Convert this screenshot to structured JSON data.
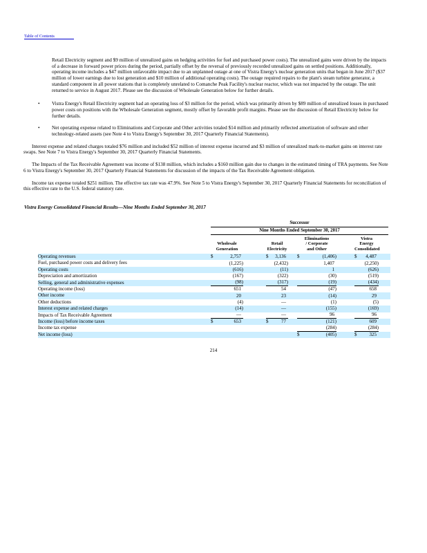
{
  "header": {
    "toc_link": "Table of Contents"
  },
  "body": {
    "bullet_char": "•",
    "p1": "Retail Electricity segment and $9 million of unrealized gains on hedging activities for fuel and purchased power costs). The unrealized gains were driven by the impacts of a decrease in forward power prices during the period, partially offset by the reversal of previously recorded unrealized gains on settled positions. Additionally, operating income includes a $47 million unfavorable impact due to an unplanned outage at one of Vistra Energy's nuclear generation units that began in June 2017 ($37 million of lower earnings due to lost generation and $10 million of additional operating costs). The outage required repairs to the plant's steam turbine generator, a standard component in all power stations that is completely unrelated to Comanche Peak Facility's nuclear reactor, which was not impacted by the outage. The unit returned to service in August 2017. Please see the discussion of Wholesale Generation below for further details.",
    "bullets": [
      "Vistra Energy's Retail Electricity segment had an operating loss of $3 million for the period, which was primarily driven by $89 million of unrealized losses in purchased power costs on positions with the Wholesale Generation segment, mostly offset by favorable profit margins. Please see the discussion of Retail Electricity below for further details.",
      "Net operating expense related to Eliminations and Corporate and Other activities totaled $14 million and primarily reflected amortization of software and other technology-related assets (see Note 4 to Vistra Energy's September 30, 2017 Quarterly Financial Statements)."
    ],
    "p2": "Interest expense and related charges totaled $76 million and included $52 million of interest expense incurred and $3 million of unrealized mark-to-market gains on interest rate swaps. See Note 7 to Vistra Energy's September 30, 2017 Quarterly Financial Statements.",
    "p3": "The Impacts of the Tax Receivable Agreement was income of $138 million, which includes a $160 million gain due to changes in the estimated timing of TRA payments. See Note 6 to Vistra Energy's September 30, 2017 Quarterly Financial Statements for discussion of the impacts of the Tax Receivable Agreement obligation.",
    "p4": "Income tax expense totaled $251 million. The effective tax rate was 47.9%. See Note 5 to Vistra Energy's September 30, 2017 Quarterly Financial Statements for reconciliation of this effective rate to the U.S. federal statutory rate.",
    "section_heading": "Vistra Energy Consolidated Financial Results—Nine Months Ended September 30, 2017"
  },
  "table": {
    "group_header": "Successor",
    "period_header": "Nine Months Ended September 30, 2017",
    "columns": [
      "Wholesale\nGeneration",
      "Retail\nElectricity",
      "Eliminations\n/ Corporate\nand Other",
      "Vistra\nEnergy\nConsolidated"
    ],
    "highlight_color": "#CCEEFF",
    "rows": [
      {
        "label": "Operating revenues",
        "shade": true,
        "cells": [
          {
            "d": "$",
            "v": "2,757"
          },
          {
            "d": "$",
            "v": "3,136"
          },
          {
            "d": "$",
            "v": "(1,406)"
          },
          {
            "d": "$",
            "v": "4,487"
          }
        ]
      },
      {
        "label": "Fuel, purchased power costs and delivery fees",
        "shade": false,
        "cells": [
          {
            "v": "(1,225)"
          },
          {
            "v": "(2,432)"
          },
          {
            "v": "1,407"
          },
          {
            "v": "(2,250)"
          }
        ]
      },
      {
        "label": "Operating costs",
        "shade": true,
        "cells": [
          {
            "v": "(616)"
          },
          {
            "v": "(11)"
          },
          {
            "v": "1"
          },
          {
            "v": "(626)"
          }
        ]
      },
      {
        "label": "Depreciation and amortization",
        "shade": false,
        "cells": [
          {
            "v": "(167)"
          },
          {
            "v": "(322)"
          },
          {
            "v": "(30)"
          },
          {
            "v": "(519)"
          }
        ]
      },
      {
        "label": "Selling, general and administrative expenses",
        "shade": true,
        "cells": [
          {
            "v": "(98)",
            "u": true
          },
          {
            "v": "(317)",
            "u": true
          },
          {
            "v": "(19)",
            "u": true
          },
          {
            "v": "(434)",
            "u": true
          }
        ]
      },
      {
        "label": "Operating income (loss)",
        "shade": false,
        "cells": [
          {
            "v": "651"
          },
          {
            "v": "54"
          },
          {
            "v": "(47)"
          },
          {
            "v": "658"
          }
        ]
      },
      {
        "label": "Other income",
        "shade": true,
        "cells": [
          {
            "v": "20"
          },
          {
            "v": "23"
          },
          {
            "v": "(14)"
          },
          {
            "v": "29"
          }
        ]
      },
      {
        "label": "Other deductions",
        "shade": false,
        "cells": [
          {
            "v": "(4)"
          },
          {
            "v": "—"
          },
          {
            "v": "(1)"
          },
          {
            "v": "(5)"
          }
        ]
      },
      {
        "label": "Interest expense and related charges",
        "shade": true,
        "cells": [
          {
            "v": "(14)"
          },
          {
            "v": "—"
          },
          {
            "v": "(155)"
          },
          {
            "v": "(169)"
          }
        ]
      },
      {
        "label": "Impacts of Tax Receivable Agreement",
        "shade": false,
        "cells": [
          {
            "v": "—",
            "u": true
          },
          {
            "v": "—",
            "u": true
          },
          {
            "v": "96",
            "u": true
          },
          {
            "v": "96",
            "u": true
          }
        ]
      },
      {
        "label": "Income (loss) before income taxes",
        "shade": true,
        "cells": [
          {
            "d": "$",
            "v": "653"
          },
          {
            "d": "$",
            "v": "77"
          },
          {
            "v": "(121)"
          },
          {
            "v": "609"
          }
        ]
      },
      {
        "label": "Income tax expense",
        "shade": false,
        "cells": [
          {
            "v": ""
          },
          {
            "v": ""
          },
          {
            "v": "(284)",
            "u": true
          },
          {
            "v": "(284)",
            "u": true
          }
        ]
      },
      {
        "label": "Net income (loss)",
        "shade": true,
        "cells": [
          {
            "v": ""
          },
          {
            "v": ""
          },
          {
            "d": "$",
            "v": "(405)"
          },
          {
            "d": "$",
            "v": "325"
          }
        ]
      }
    ]
  },
  "footer": {
    "page_number": "214"
  }
}
